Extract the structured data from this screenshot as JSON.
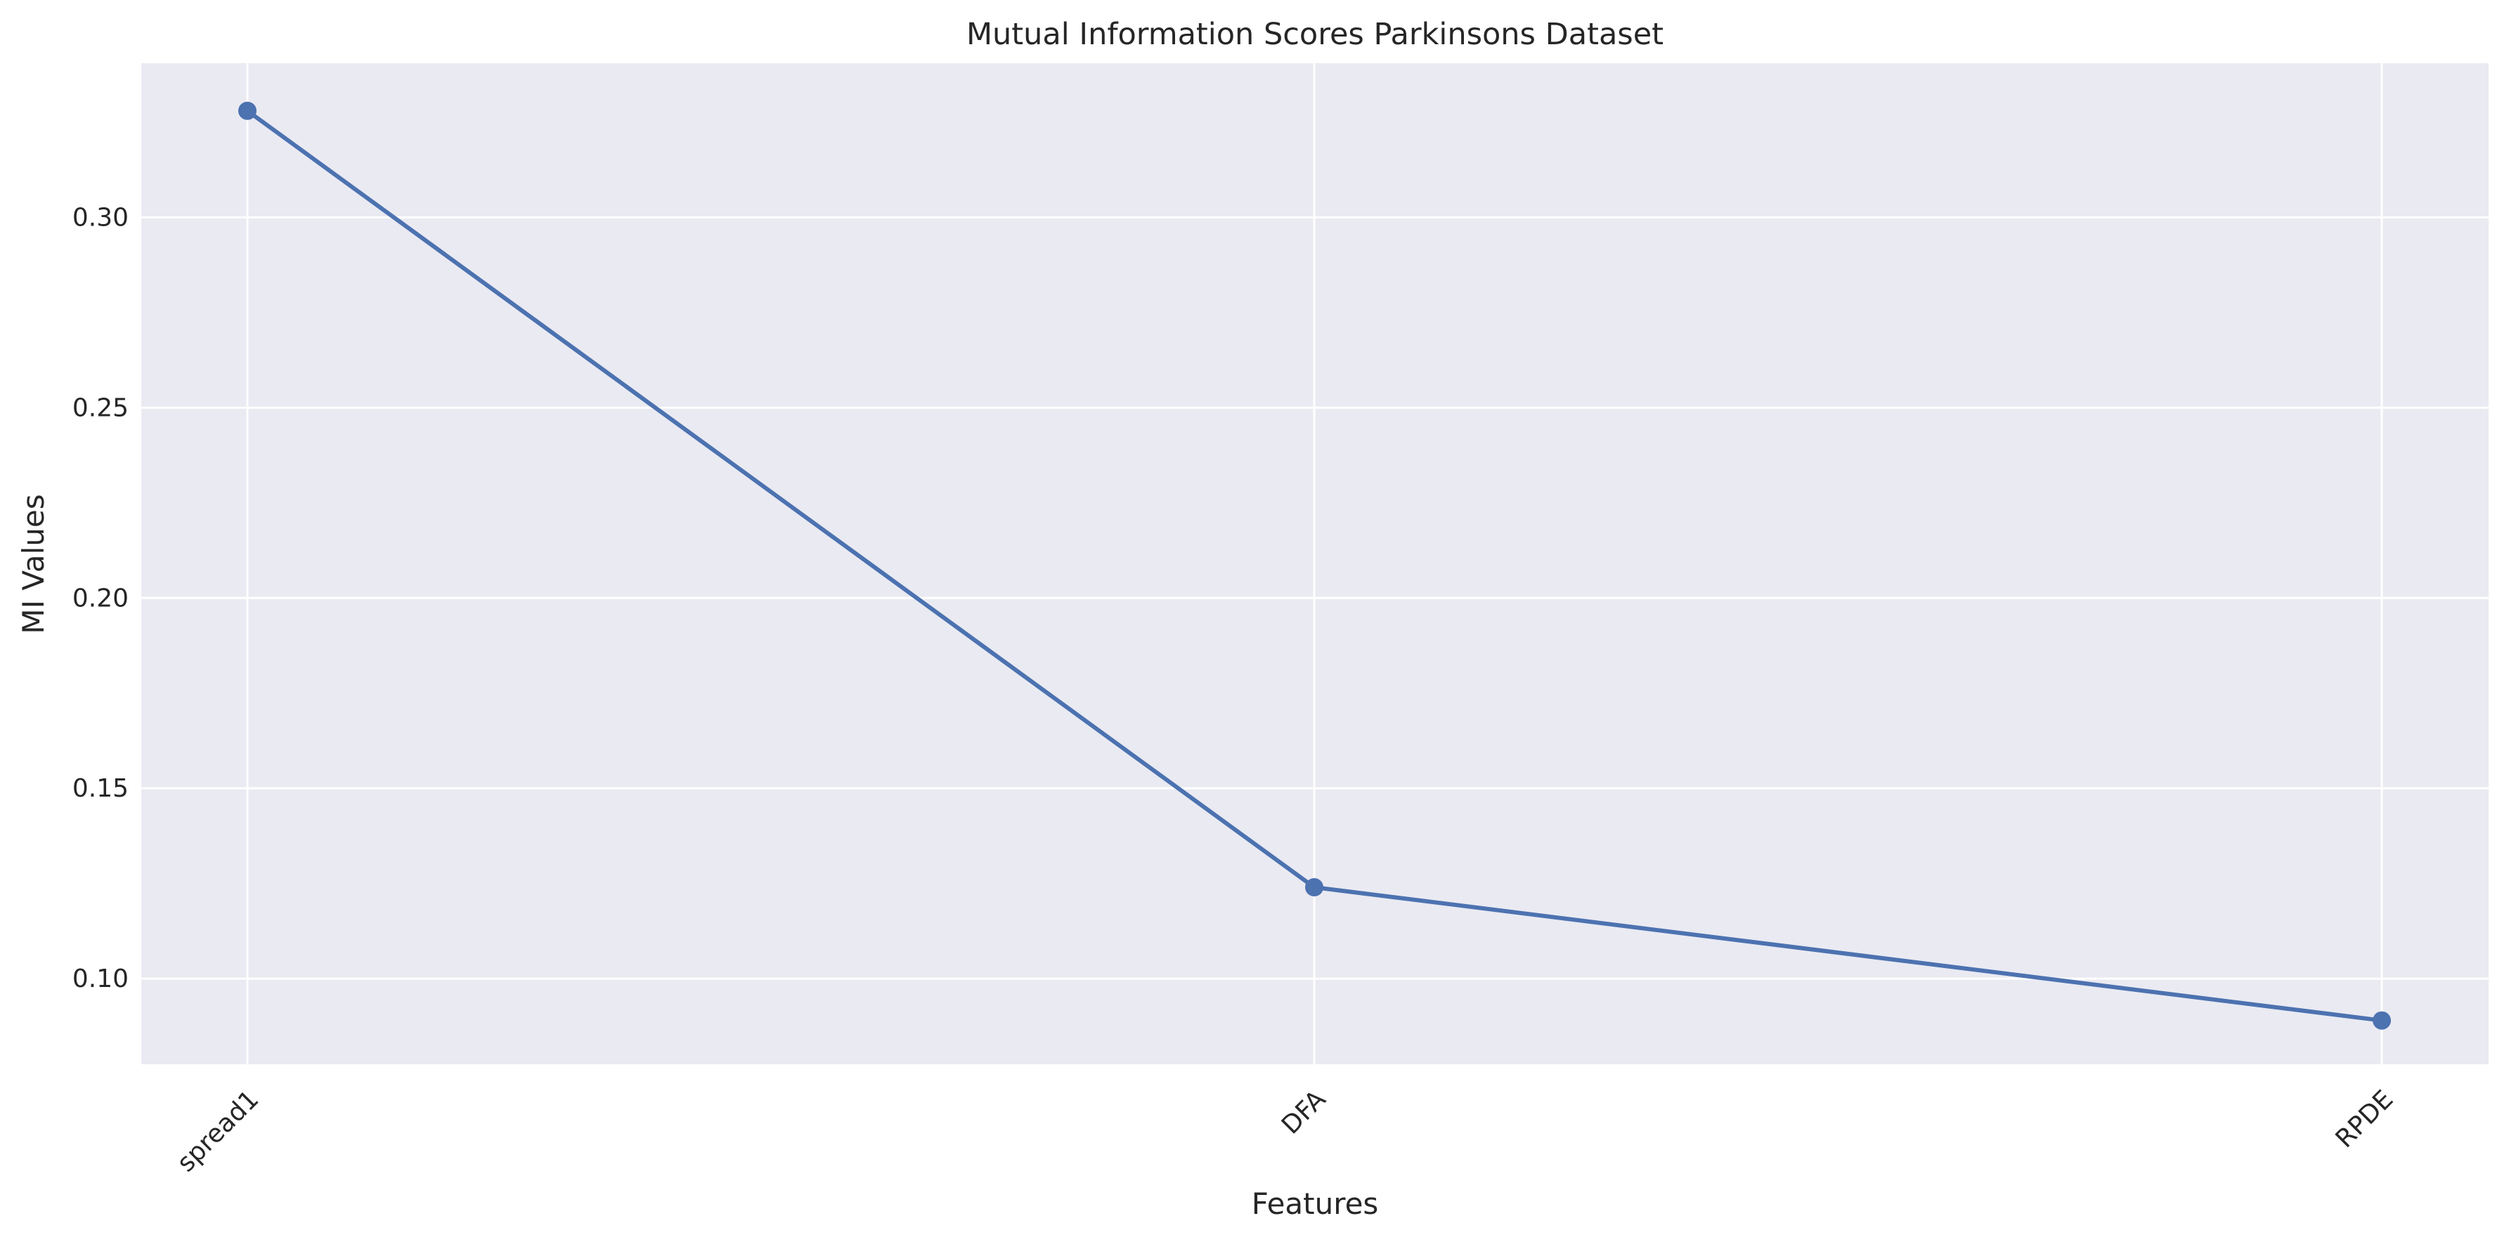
{
  "chart_data": {
    "type": "line",
    "title": "Mutual Information Scores Parkinsons Dataset",
    "xlabel": "Features",
    "ylabel": "MI Values",
    "categories": [
      "spread1",
      "DFA",
      "RPDE"
    ],
    "series": [
      {
        "name": "MI Values",
        "values": [
          0.328,
          0.124,
          0.089
        ]
      }
    ],
    "ylim": [
      0.0775,
      0.3405
    ],
    "yticks": [
      0.1,
      0.15,
      0.2,
      0.25,
      0.3
    ],
    "ytick_labels": [
      "0.10",
      "0.15",
      "0.20",
      "0.25",
      "0.30"
    ],
    "grid": true,
    "colors": {
      "series": "#4c72b0",
      "plot_bg": "#eaeaf2",
      "grid": "#ffffff",
      "text": "#262626"
    }
  }
}
